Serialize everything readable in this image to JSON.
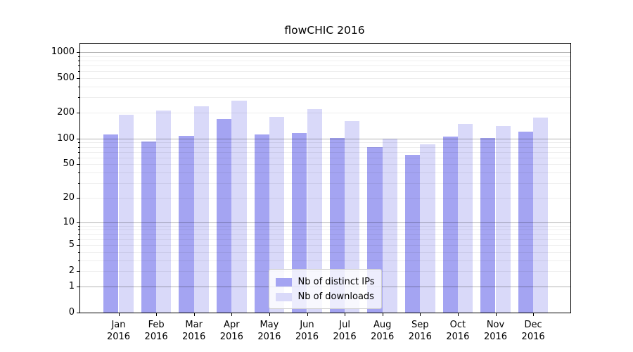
{
  "figure": {
    "title": "flowCHIC 2016"
  },
  "chart_data": {
    "type": "bar",
    "title": "flowCHIC 2016",
    "categories": [
      "Jan",
      "Feb",
      "Mar",
      "Apr",
      "May",
      "Jun",
      "Jul",
      "Aug",
      "Sep",
      "Oct",
      "Nov",
      "Dec"
    ],
    "year": "2016",
    "series": [
      {
        "name": "Nb of distinct IPs",
        "color": "#a4a4f2",
        "values": [
          111,
          92,
          107,
          169,
          112,
          117,
          101,
          80,
          65,
          106,
          101,
          121
        ]
      },
      {
        "name": "Nb of downloads",
        "color": "#d9d9f9",
        "values": [
          188,
          211,
          235,
          277,
          178,
          221,
          159,
          99,
          85,
          147,
          140,
          176
        ]
      }
    ],
    "xlabel": "",
    "ylabel": "",
    "yscale": "log1p",
    "ytick_labels": [
      0,
      1,
      2,
      5,
      10,
      20,
      50,
      100,
      200,
      500,
      1000
    ],
    "major_gridlines": [
      1,
      10,
      100,
      1000
    ],
    "ylim": [
      0,
      1250
    ],
    "grid": true,
    "legend_position": "lower center",
    "colors": {
      "major_grid": "rgba(0,0,0,0.30)",
      "minor_grid": "rgba(0,0,0,0.065)",
      "spine": "#000000",
      "background": "#ffffff"
    }
  }
}
